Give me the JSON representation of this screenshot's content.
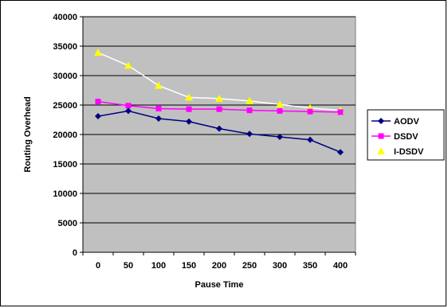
{
  "chart_data": {
    "type": "line",
    "title": "",
    "xlabel": "Pause Time",
    "ylabel": "Routing Overhead",
    "x": [
      0,
      50,
      100,
      150,
      200,
      250,
      300,
      350,
      400
    ],
    "ylim": [
      0,
      40000
    ],
    "yticks": [
      0,
      5000,
      10000,
      15000,
      20000,
      25000,
      30000,
      35000,
      40000
    ],
    "grid": true,
    "legend_position": "right",
    "series": [
      {
        "name": "AODV",
        "color": "#000080",
        "marker": "diamond",
        "values": [
          23100,
          24000,
          22700,
          22200,
          21000,
          20100,
          19600,
          19100,
          17000
        ]
      },
      {
        "name": "DSDV",
        "color": "#ff00ff",
        "marker": "square",
        "values": [
          25600,
          24900,
          24400,
          24300,
          24300,
          24100,
          24000,
          23900,
          23800
        ]
      },
      {
        "name": "I-DSDV",
        "color": "#ffff00",
        "marker": "triangle",
        "line_color": "#ffffff",
        "values": [
          33900,
          31700,
          28300,
          26300,
          26100,
          25700,
          25100,
          24500,
          24100
        ]
      }
    ]
  }
}
